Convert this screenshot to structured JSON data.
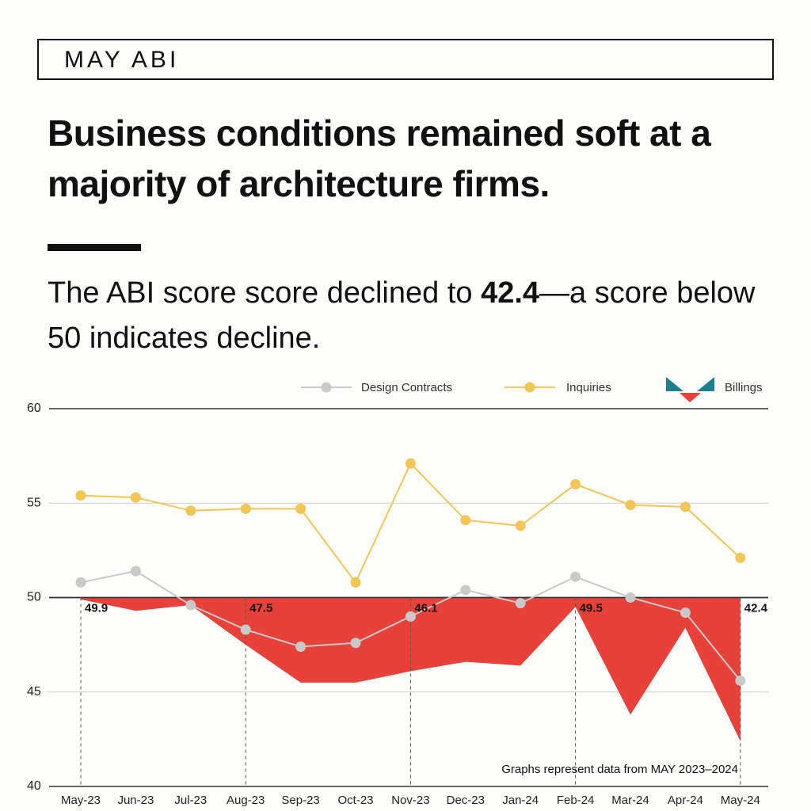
{
  "header": {
    "label": "MAY ABI"
  },
  "headline": "Business conditions remained soft at a majority of architecture firms.",
  "subhead": {
    "before": "The ABI score score declined to ",
    "value": "42.4",
    "after": "—a score below 50 indicates decline."
  },
  "colors": {
    "billings": "#e8413a",
    "inquiries": "#f2c656",
    "design_contracts": "#c9c9c9",
    "billings_logo_teal": "#1f7e8c"
  },
  "chart_data": {
    "type": "line",
    "categories": [
      "May-23",
      "Jun-23",
      "Jul-23",
      "Aug-23",
      "Sep-23",
      "Oct-23",
      "Nov-23",
      "Dec-23",
      "Jan-24",
      "Feb-24",
      "Mar-24",
      "Apr-24",
      "May-24"
    ],
    "ylim": [
      40,
      60
    ],
    "yticks": [
      "60",
      "55",
      "50",
      "45",
      "40"
    ],
    "baseline": 50,
    "legend_position": "top-right",
    "series": [
      {
        "name": "Design Contracts",
        "style": "line",
        "values": [
          50.8,
          51.4,
          49.6,
          48.3,
          47.4,
          47.6,
          49.0,
          50.4,
          49.7,
          51.1,
          50.0,
          49.2,
          45.6
        ]
      },
      {
        "name": "Inquiries",
        "style": "line",
        "values": [
          55.4,
          55.3,
          54.6,
          54.7,
          54.7,
          50.8,
          57.1,
          54.1,
          53.8,
          56.0,
          54.9,
          54.8,
          52.1
        ]
      },
      {
        "name": "Billings",
        "style": "area",
        "values": [
          49.9,
          49.3,
          49.6,
          47.5,
          45.5,
          45.5,
          46.1,
          46.6,
          46.4,
          49.5,
          43.8,
          48.4,
          42.4
        ]
      }
    ],
    "annotations": [
      {
        "index": 0,
        "label": "49.9"
      },
      {
        "index": 3,
        "label": "47.5"
      },
      {
        "index": 6,
        "label": "46.1"
      },
      {
        "index": 9,
        "label": "49.5"
      },
      {
        "index": 12,
        "label": "42.4"
      }
    ],
    "note": "Graphs represent data from MAY 2023–2024"
  }
}
